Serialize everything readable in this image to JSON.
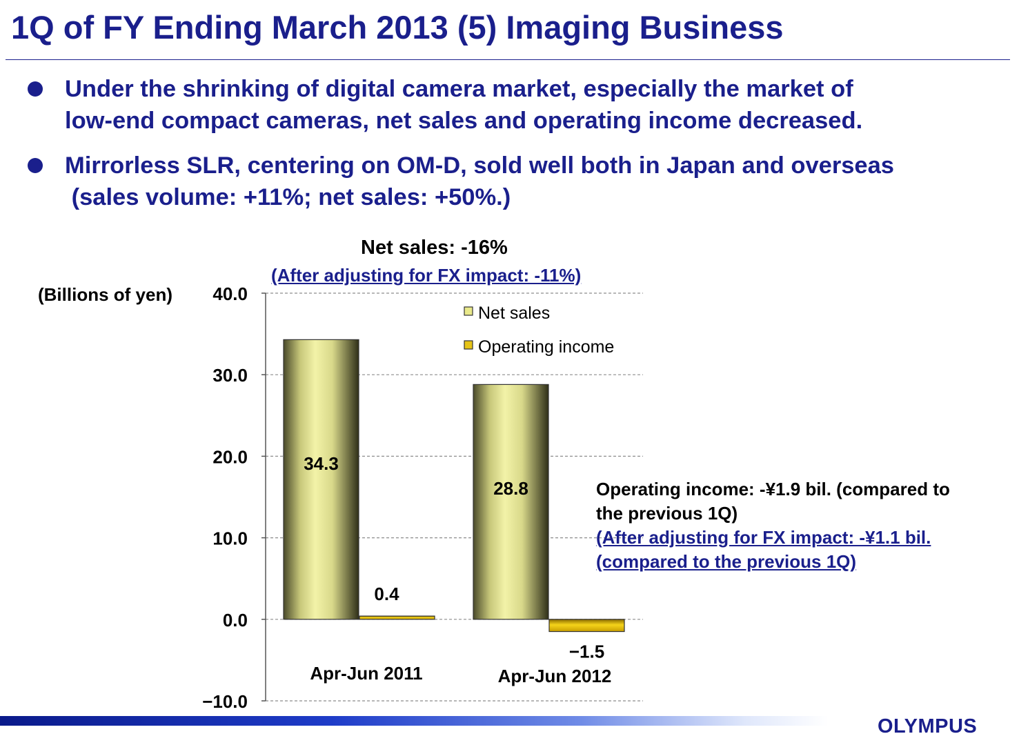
{
  "slide": {
    "title": "1Q of FY Ending March 2013 (5) Imaging Business",
    "bullets": [
      {
        "line1": "Under the shrinking of digital camera market, especially the market of",
        "line2": "low-end compact cameras, net sales and operating income decreased."
      },
      {
        "line1": "Mirrorless SLR, centering on OM-D, sold well both in Japan and overseas",
        "line2": " (sales volume: +11%; net sales: +50%.)"
      }
    ],
    "annotation": {
      "line1": "Operating income: -¥1.9 bil. (compared to",
      "line2": "the previous 1Q)",
      "line3": "(After adjusting for FX impact: -¥1.1 bil.",
      "line4": "(compared to the previous 1Q)"
    },
    "logo": "OLYMPUS"
  },
  "chart_data": {
    "type": "bar",
    "title": "Net sales: -16%",
    "subtitle": "(After adjusting for FX impact: -11%)",
    "ylabel": "(Billions of yen)",
    "xlabel": "",
    "categories": [
      "Apr-Jun 2011",
      "Apr-Jun 2012"
    ],
    "series": [
      {
        "name": "Net sales",
        "values": [
          34.3,
          28.8
        ],
        "labels": [
          "34.3",
          "28.8"
        ],
        "color": "#e9e98a"
      },
      {
        "name": "Operating income",
        "values": [
          0.4,
          -1.5
        ],
        "labels": [
          "0.4",
          "−1.5"
        ],
        "color": "#e6c417"
      }
    ],
    "ylim": [
      -10,
      40
    ],
    "yticks": [
      "40.0",
      "30.0",
      "20.0",
      "10.0",
      "0.0",
      "−10.0"
    ],
    "grid": true,
    "legend_position": "top-right"
  }
}
